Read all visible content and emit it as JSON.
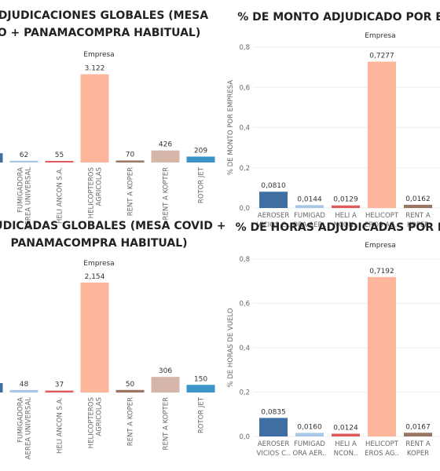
{
  "chart_data": [
    {
      "type": "bar",
      "title": [
        "ADJUDICACIONES GLOBALES (MESA",
        "O + PANAMACOMPRA HABITUAL)"
      ],
      "subtitle": "Empresa",
      "categories": [
        null,
        [
          "FUMIGADORA",
          "AEREA UNIVERSAL"
        ],
        [
          "HELI ANCON S.A."
        ],
        [
          "HELICOPTEROS",
          "AGRICOLAS"
        ],
        [
          "RENT A KOPER"
        ],
        [
          "RENT A KOPTER"
        ],
        [
          "ROTOR JET"
        ]
      ],
      "values": [
        330,
        62,
        55,
        3122,
        70,
        426,
        209
      ],
      "value_labels": [
        null,
        "62",
        "55",
        "3.122",
        "70",
        "426",
        "209"
      ],
      "colors": [
        "#3f6ea3",
        "#a6c8e6",
        "#e05a5c",
        "#fdb59c",
        "#9a7662",
        "#d6b6a8",
        "#3b95cb"
      ],
      "ylim": [
        0,
        3500
      ]
    },
    {
      "type": "bar",
      "title": [
        "% DE MONTO ADJUDICADO POR EM"
      ],
      "subtitle": "Empresa",
      "y_label": "% DE MONTO POR EMPRESA",
      "categories": [
        [
          "AEROSER",
          "VICIOS C.."
        ],
        [
          "FUMIGAD",
          "ORA AER.."
        ],
        [
          "HELI A",
          "NCON.."
        ],
        [
          "HELICOPT",
          "EROS AG.."
        ],
        [
          "RENT A",
          "KOPER"
        ]
      ],
      "values": [
        0.081,
        0.0144,
        0.0129,
        0.7277,
        0.0162
      ],
      "value_labels": [
        "0,0810",
        "0,0144",
        "0,0129",
        "0,7277",
        "0,0162"
      ],
      "colors": [
        "#3f6ea3",
        "#a6c8e6",
        "#e05a5c",
        "#fdb59c",
        "#9a7662"
      ],
      "ylim": [
        0,
        0.8
      ],
      "yticks": [
        {
          "value": 0,
          "label": "0,0"
        },
        {
          "value": 0.2,
          "label": "0,2"
        },
        {
          "value": 0.4,
          "label": "0,4"
        },
        {
          "value": 0.6,
          "label": "0,6"
        },
        {
          "value": 0.8,
          "label": "0,8"
        }
      ],
      "grid": true
    },
    {
      "type": "bar",
      "title": [
        "ADJUDICADAS GLOBALES (MESA COVID +",
        "PANAMACOMPRA HABITUAL)"
      ],
      "subtitle": "Empresa",
      "categories": [
        null,
        [
          "FUMIGADORA",
          "AEREA UNIVERSAL"
        ],
        [
          "HELI ANCON S.A."
        ],
        [
          "HELICOPTEROS",
          "AGRICOLAS"
        ],
        [
          "RENT A KOPER"
        ],
        [
          "RENT A KOPTER"
        ],
        [
          "ROTOR JET"
        ]
      ],
      "values": [
        185,
        48,
        37,
        2154,
        50,
        306,
        150
      ],
      "value_labels": [
        null,
        "48",
        "37",
        "2,154",
        "50",
        "306",
        "150"
      ],
      "colors": [
        "#3f6ea3",
        "#a6c8e6",
        "#e05a5c",
        "#fdb59c",
        "#9a7662",
        "#d6b6a8",
        "#3b95cb"
      ],
      "ylim": [
        0,
        2400
      ]
    },
    {
      "type": "bar",
      "title": [
        "% DE HORAS ADJUDICADAS POR EM"
      ],
      "subtitle": "Empresa",
      "y_label": "% DE HORAS DE VUELO",
      "categories": [
        [
          "AEROSER",
          "VICIOS C.."
        ],
        [
          "FUMIGAD",
          "ORA AER.."
        ],
        [
          "HELI A",
          "NCON.."
        ],
        [
          "HELICOPT",
          "EROS AG.."
        ],
        [
          "RENT A",
          "KOPER"
        ]
      ],
      "values": [
        0.0835,
        0.016,
        0.0124,
        0.7192,
        0.0167
      ],
      "value_labels": [
        "0,0835",
        "0,0160",
        "0,0124",
        "0,7192",
        "0,0167"
      ],
      "colors": [
        "#3f6ea3",
        "#a6c8e6",
        "#e05a5c",
        "#fdb59c",
        "#9a7662"
      ],
      "ylim": [
        0,
        0.8
      ],
      "yticks": [
        {
          "value": 0,
          "label": "0,0"
        },
        {
          "value": 0.2,
          "label": "0,2"
        },
        {
          "value": 0.4,
          "label": "0,4"
        },
        {
          "value": 0.6,
          "label": "0,6"
        },
        {
          "value": 0.8,
          "label": "0,8"
        }
      ],
      "grid": true
    }
  ]
}
